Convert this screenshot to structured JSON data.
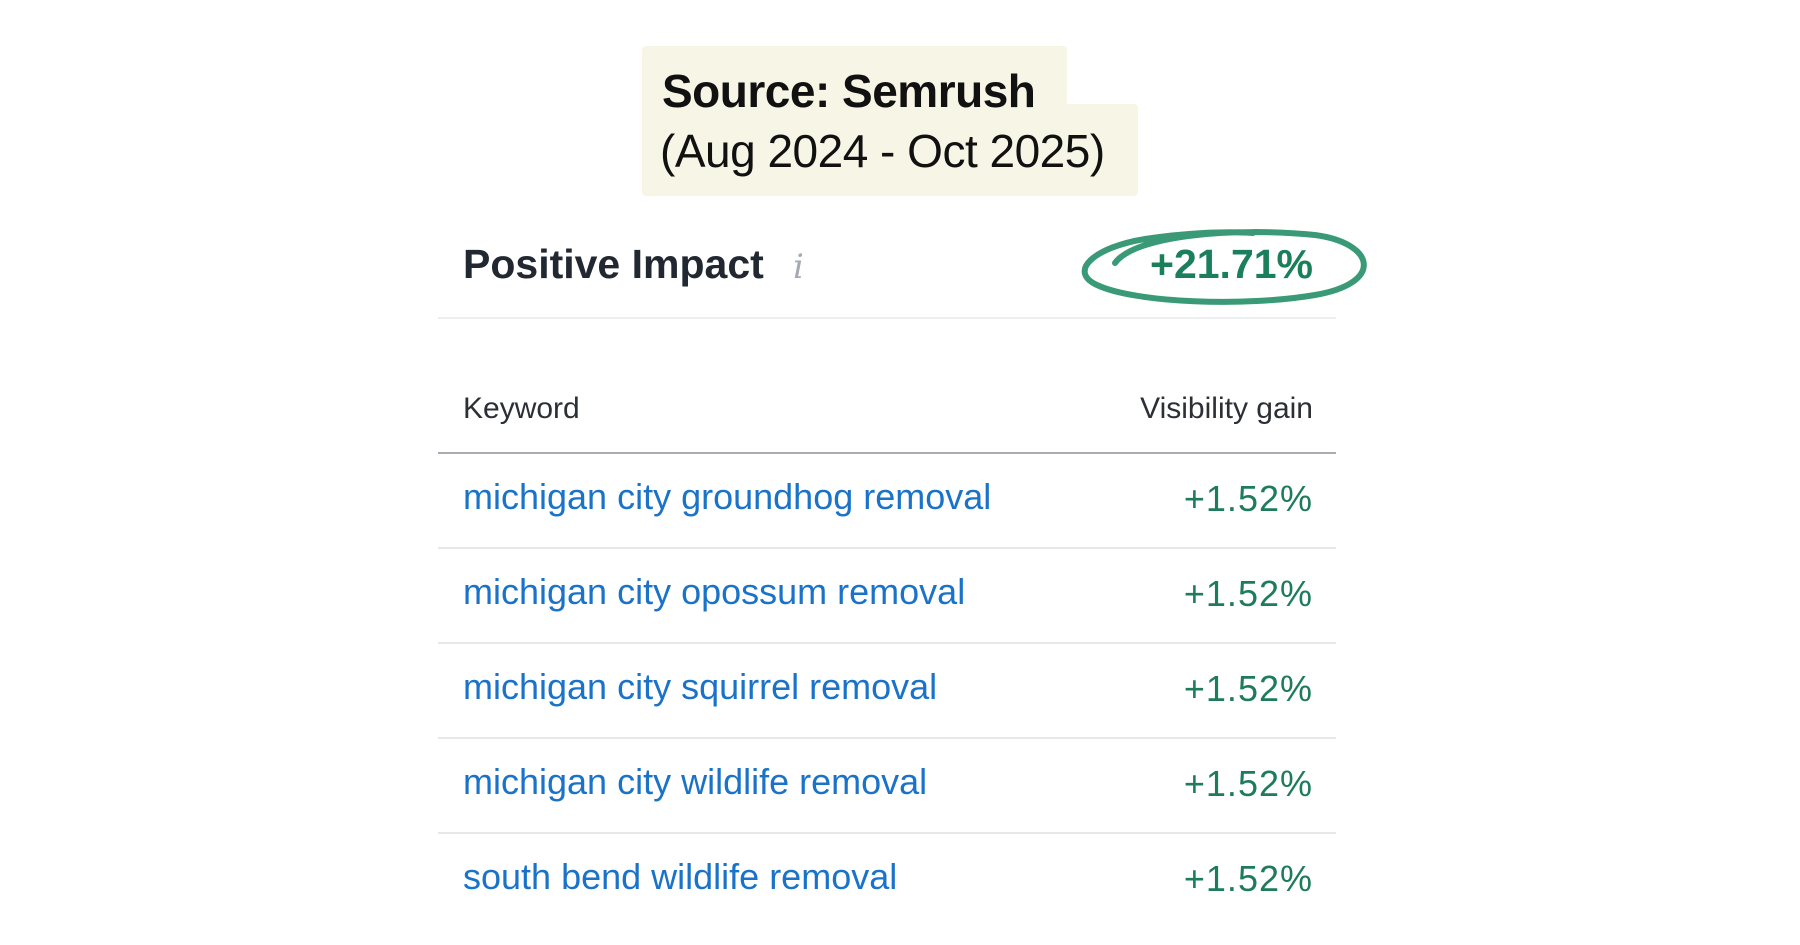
{
  "source_note": {
    "title": "Source: Semrush",
    "range": "(Aug 2024 - Oct 2025)"
  },
  "impact": {
    "title": "Positive Impact",
    "info_icon": "info-icon",
    "value": "+21.71%",
    "highlight_color": "#3a9a78"
  },
  "table": {
    "headers": {
      "keyword": "Keyword",
      "gain": "Visibility gain"
    },
    "rows": [
      {
        "keyword": "michigan city groundhog removal",
        "gain": "+1.52%"
      },
      {
        "keyword": "michigan city opossum removal",
        "gain": "+1.52%"
      },
      {
        "keyword": "michigan city squirrel removal",
        "gain": "+1.52%"
      },
      {
        "keyword": "michigan city wildlife removal",
        "gain": "+1.52%"
      },
      {
        "keyword": "south bend wildlife removal",
        "gain": "+1.52%"
      }
    ]
  },
  "colors": {
    "link": "#1a73c9",
    "positive": "#1e7b5c",
    "note_bg": "#f7f6e6"
  }
}
